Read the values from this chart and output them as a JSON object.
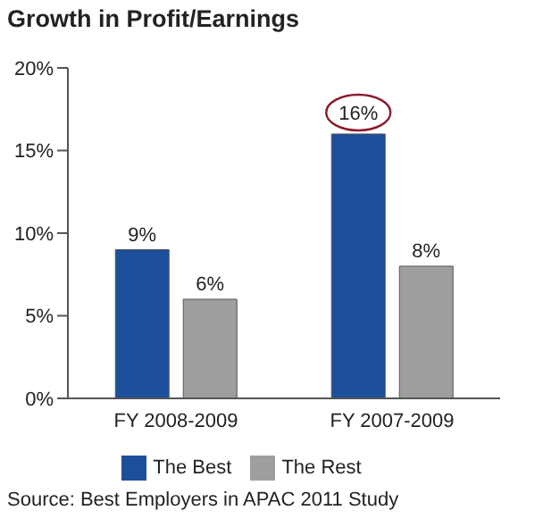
{
  "chart_data": {
    "type": "bar",
    "title": "Growth in Profit/Earnings",
    "categories": [
      "FY 2008-2009",
      "FY 2007-2009"
    ],
    "series": [
      {
        "name": "The Best",
        "color": "#1c4f9c",
        "values": [
          9,
          16
        ],
        "value_labels": [
          "9%",
          null
        ]
      },
      {
        "name": "The Rest",
        "color": "#9e9e9e",
        "values": [
          6,
          8
        ],
        "value_labels": [
          "6%",
          "8%"
        ]
      }
    ],
    "ylim": [
      0,
      20
    ],
    "yticks": [
      {
        "value": 0,
        "label": "0%"
      },
      {
        "value": 5,
        "label": "5%"
      },
      {
        "value": 10,
        "label": "10%"
      },
      {
        "value": 15,
        "label": "15%"
      },
      {
        "value": 20,
        "label": "20%"
      }
    ],
    "grid": false,
    "legend": "bottom",
    "annotations": [
      {
        "text": "16%",
        "x": "FY 2007-2009",
        "y": 16
      },
      "Source: Best Employers in APAC 2011 Study"
    ]
  }
}
